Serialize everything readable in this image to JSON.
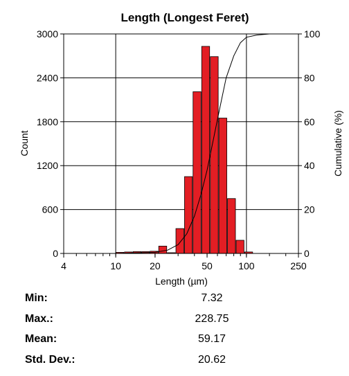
{
  "chart_data": {
    "type": "bar",
    "title": "Length (Longest Feret)",
    "xlabel": "Length (µm)",
    "ylabel": "Count",
    "y2label": "Cumulative (%)",
    "xscale": "log",
    "xlim": [
      4,
      250
    ],
    "ylim": [
      0,
      3000
    ],
    "y2lim": [
      0,
      100
    ],
    "x_ticks": [
      4,
      10,
      20,
      50,
      100,
      250
    ],
    "y_ticks": [
      0,
      600,
      1200,
      1800,
      2400,
      3000
    ],
    "y2_ticks": [
      0,
      20,
      40,
      60,
      80,
      100
    ],
    "grid": true,
    "bar_color": "#e31e24",
    "bins": [
      {
        "left": 10.0,
        "right": 11.6,
        "count": 15
      },
      {
        "left": 11.6,
        "right": 13.5,
        "count": 20
      },
      {
        "left": 13.5,
        "right": 15.7,
        "count": 25
      },
      {
        "left": 15.7,
        "right": 18.2,
        "count": 25
      },
      {
        "left": 18.2,
        "right": 21.2,
        "count": 30
      },
      {
        "left": 21.2,
        "right": 24.7,
        "count": 100
      },
      {
        "left": 24.7,
        "right": 28.7,
        "count": 10
      },
      {
        "left": 28.7,
        "right": 33.4,
        "count": 340
      },
      {
        "left": 33.4,
        "right": 38.8,
        "count": 1050
      },
      {
        "left": 38.8,
        "right": 45.2,
        "count": 2210
      },
      {
        "left": 45.2,
        "right": 52.6,
        "count": 2830
      },
      {
        "left": 52.6,
        "right": 61.2,
        "count": 2690
      },
      {
        "left": 61.2,
        "right": 71.2,
        "count": 1850
      },
      {
        "left": 71.2,
        "right": 82.9,
        "count": 750
      },
      {
        "left": 82.9,
        "right": 96.4,
        "count": 180
      },
      {
        "left": 96.4,
        "right": 112.2,
        "count": 20
      }
    ],
    "cumulative": {
      "x": [
        4,
        10,
        20,
        25,
        30,
        35,
        40,
        45,
        50,
        55,
        60,
        65,
        70,
        80,
        90,
        100,
        120,
        150,
        250
      ],
      "y": [
        0,
        0,
        0.5,
        1.5,
        4,
        9,
        17,
        27,
        38,
        50,
        61,
        71,
        80,
        90,
        96,
        98.5,
        99.5,
        100,
        100
      ]
    }
  },
  "stats": [
    {
      "label": "Min:",
      "value": "7.32"
    },
    {
      "label": "Max.:",
      "value": "228.75"
    },
    {
      "label": "Mean:",
      "value": "59.17"
    },
    {
      "label": "Std. Dev.:",
      "value": "20.62"
    }
  ]
}
